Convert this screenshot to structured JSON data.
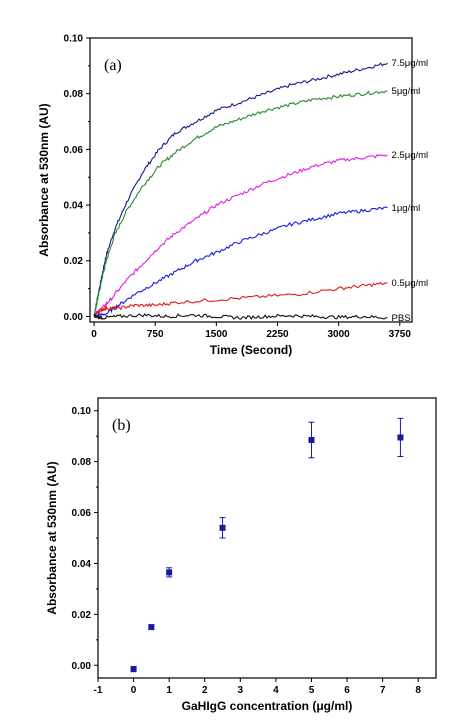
{
  "chart_data": [
    {
      "panel": "(a)",
      "type": "line",
      "xlabel": "Time (Second)",
      "ylabel": "Absorbance at 530nm (AU)",
      "xlim": [
        -50,
        3900
      ],
      "ylim": [
        -0.002,
        0.1
      ],
      "xticks": [
        0,
        750,
        1500,
        2250,
        3000,
        3750
      ],
      "yticks": [
        0.0,
        0.02,
        0.04,
        0.06,
        0.08,
        0.1
      ],
      "ytick_labels": [
        "0.00",
        "0.02",
        "0.04",
        "0.06",
        "0.08",
        "0.10"
      ],
      "series": [
        {
          "name": "7.5μg/ml",
          "color": "#1a1a8c",
          "x": [
            0,
            50,
            100,
            150,
            250,
            400,
            600,
            800,
            1000,
            1250,
            1500,
            1800,
            2100,
            2400,
            2700,
            3000,
            3300,
            3600
          ],
          "y": [
            0.0,
            0.008,
            0.015,
            0.022,
            0.031,
            0.041,
            0.052,
            0.06,
            0.066,
            0.07,
            0.074,
            0.077,
            0.08,
            0.083,
            0.085,
            0.087,
            0.089,
            0.091
          ]
        },
        {
          "name": "5μg/ml",
          "color": "#2a8a2a",
          "x": [
            0,
            50,
            100,
            150,
            250,
            400,
            600,
            800,
            1000,
            1250,
            1500,
            1800,
            2100,
            2400,
            2700,
            3000,
            3300,
            3600
          ],
          "y": [
            0.0,
            0.007,
            0.014,
            0.02,
            0.029,
            0.038,
            0.047,
            0.054,
            0.059,
            0.064,
            0.068,
            0.071,
            0.074,
            0.076,
            0.078,
            0.079,
            0.08,
            0.081
          ]
        },
        {
          "name": "2.5μg/ml",
          "color": "#e020e0",
          "x": [
            0,
            100,
            200,
            400,
            600,
            800,
            1000,
            1250,
            1500,
            1800,
            2100,
            2400,
            2700,
            3000,
            3300,
            3600
          ],
          "y": [
            0.0,
            0.003,
            0.006,
            0.013,
            0.019,
            0.025,
            0.03,
            0.035,
            0.04,
            0.044,
            0.048,
            0.051,
            0.054,
            0.056,
            0.057,
            0.058
          ]
        },
        {
          "name": "1μg/ml",
          "color": "#1a1ae0",
          "x": [
            0,
            150,
            300,
            500,
            750,
            1000,
            1250,
            1500,
            1800,
            2100,
            2400,
            2700,
            3000,
            3300,
            3600
          ],
          "y": [
            0.0,
            0.001,
            0.004,
            0.008,
            0.012,
            0.016,
            0.02,
            0.023,
            0.027,
            0.03,
            0.033,
            0.035,
            0.037,
            0.038,
            0.039
          ]
        },
        {
          "name": "0.5μg/ml",
          "color": "#e01a1a",
          "x": [
            0,
            50,
            150,
            300,
            500,
            750,
            1000,
            1500,
            2000,
            2500,
            3000,
            3300,
            3600
          ],
          "y": [
            0.0,
            0.002,
            0.003,
            0.003,
            0.004,
            0.004,
            0.005,
            0.006,
            0.007,
            0.008,
            0.01,
            0.011,
            0.012
          ]
        },
        {
          "name": "PBS",
          "color": "#111111",
          "x": [
            0,
            100,
            300,
            600,
            900,
            1200,
            1500,
            1800,
            2100,
            2400,
            2700,
            3000,
            3300,
            3600
          ],
          "y": [
            0.0,
            -0.0005,
            0.0,
            0.0005,
            0.0,
            0.0005,
            0.0,
            -0.0005,
            0.0,
            0.0003,
            0.0,
            -0.0003,
            0.0,
            -0.0005
          ]
        }
      ]
    },
    {
      "panel": "(b)",
      "type": "scatter",
      "xlabel": "GaHIgG concentration (μg/ml)",
      "ylabel": "Absorbance at 530nm (AU)",
      "xlim": [
        -1,
        8.5
      ],
      "ylim": [
        -0.005,
        0.105
      ],
      "xticks": [
        -1,
        0,
        1,
        2,
        3,
        4,
        5,
        6,
        7,
        8
      ],
      "yticks": [
        0.0,
        0.02,
        0.04,
        0.06,
        0.08,
        0.1
      ],
      "ytick_labels": [
        "0.00",
        "0.02",
        "0.04",
        "0.06",
        "0.08",
        "0.10"
      ],
      "marker_color": "#1a1aa0",
      "points": [
        {
          "x": 0,
          "y": -0.0015,
          "err": 0.001
        },
        {
          "x": 0.5,
          "y": 0.015,
          "err": 0.0008
        },
        {
          "x": 1,
          "y": 0.0365,
          "err": 0.0018
        },
        {
          "x": 2.5,
          "y": 0.054,
          "err": 0.004
        },
        {
          "x": 5,
          "y": 0.0885,
          "err": 0.007
        },
        {
          "x": 7.5,
          "y": 0.0895,
          "err": 0.0075
        }
      ]
    }
  ]
}
